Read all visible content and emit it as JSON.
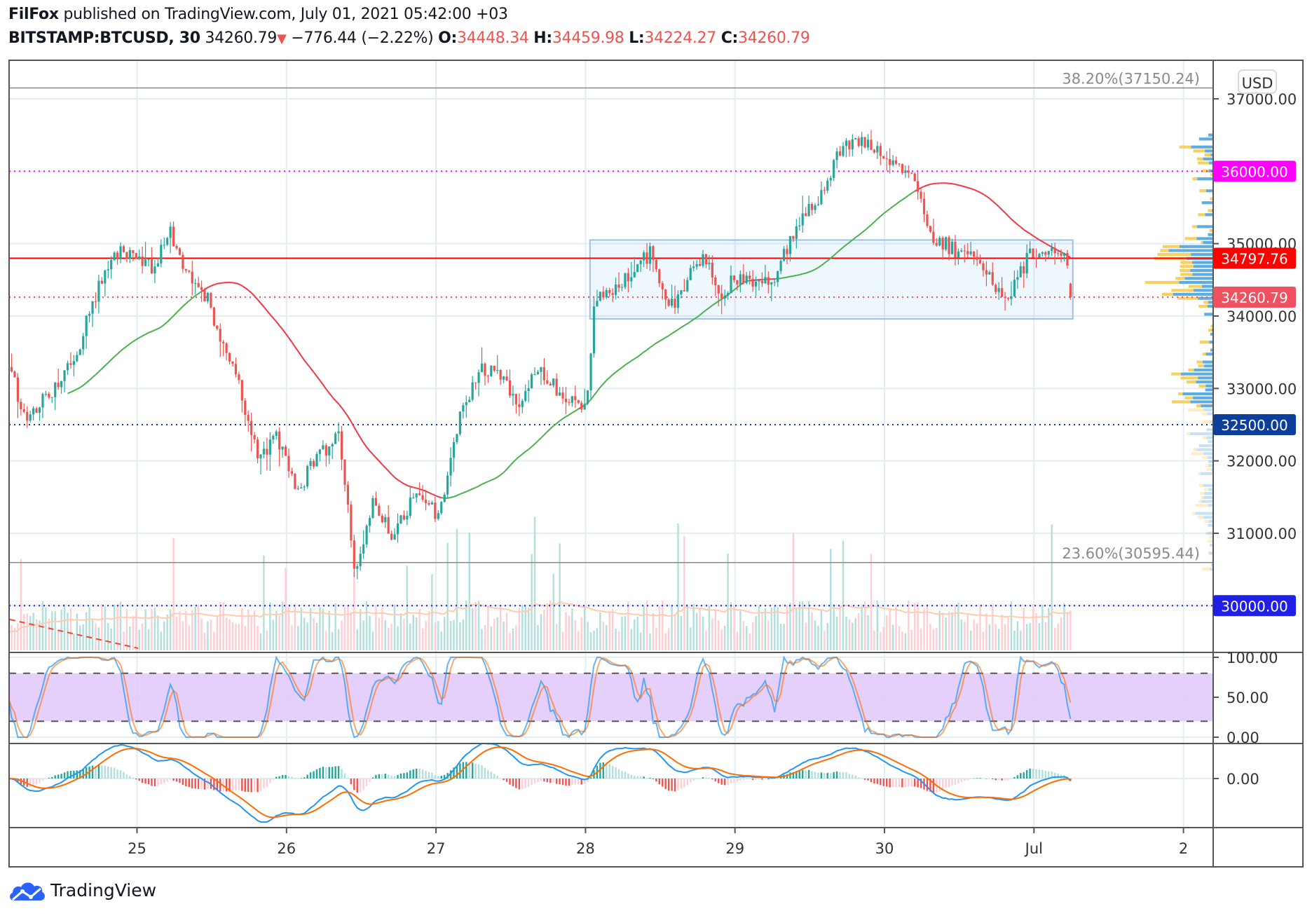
{
  "header": {
    "author": "FilFox",
    "published": "published on TradingView.com, July 01, 2021 05:42:00 +03",
    "symbol": "BITSTAMP:BTCUSD, 30",
    "last": "34260.79",
    "change": "−776.44 (−2.22%)",
    "o_label": "O:",
    "o": "34448.34",
    "h_label": "H:",
    "h": "34459.98",
    "l_label": "L:",
    "l": "34224.27",
    "c_label": "C:",
    "c": "34260.79"
  },
  "currency_badge": "USD",
  "footer": {
    "brand": "TradingView"
  },
  "chart_data": {
    "type": "candlestick",
    "title": "BITSTAMP:BTCUSD, 30",
    "interval_minutes": 30,
    "x_ticks": [
      {
        "day": 25,
        "label": "25"
      },
      {
        "day": 26,
        "label": "26"
      },
      {
        "day": 27,
        "label": "27"
      },
      {
        "day": 28,
        "label": "28"
      },
      {
        "day": 29,
        "label": "29"
      },
      {
        "day": 30,
        "label": "30"
      },
      {
        "day": 31,
        "label": "Jul"
      },
      {
        "day": 32,
        "label": "2"
      }
    ],
    "y_ticks": [
      "37000.00",
      "35000.00",
      "34000.00",
      "33000.00",
      "32000.00",
      "31000.00"
    ],
    "y_tick_values": [
      37000,
      35000,
      34000,
      33000,
      32000,
      31000
    ],
    "ylim": [
      29400,
      37350
    ],
    "price_path": [
      [
        24.14,
        33385
      ],
      [
        24.24,
        32575
      ],
      [
        24.41,
        32920
      ],
      [
        24.58,
        33385
      ],
      [
        24.69,
        34080
      ],
      [
        24.83,
        34890
      ],
      [
        24.97,
        34830
      ],
      [
        25.11,
        34660
      ],
      [
        25.22,
        35180
      ],
      [
        25.34,
        34540
      ],
      [
        25.48,
        34200
      ],
      [
        25.59,
        33500
      ],
      [
        25.7,
        32920
      ],
      [
        25.81,
        32000
      ],
      [
        25.93,
        32350
      ],
      [
        26.07,
        31530
      ],
      [
        26.18,
        32000
      ],
      [
        26.35,
        32350
      ],
      [
        26.46,
        30490
      ],
      [
        26.57,
        31420
      ],
      [
        26.71,
        30950
      ],
      [
        26.88,
        31650
      ],
      [
        27.02,
        31180
      ],
      [
        27.16,
        32570
      ],
      [
        27.3,
        33270
      ],
      [
        27.44,
        33150
      ],
      [
        27.56,
        32690
      ],
      [
        27.67,
        33270
      ],
      [
        27.84,
        32920
      ],
      [
        28.0,
        32690
      ],
      [
        28.06,
        34200
      ],
      [
        28.22,
        34430
      ],
      [
        28.44,
        34890
      ],
      [
        28.56,
        34080
      ],
      [
        28.79,
        34890
      ],
      [
        28.9,
        34310
      ],
      [
        29.02,
        34540
      ],
      [
        29.25,
        34430
      ],
      [
        29.41,
        35240
      ],
      [
        29.58,
        35700
      ],
      [
        29.69,
        36280
      ],
      [
        29.86,
        36400
      ],
      [
        30.03,
        36170
      ],
      [
        30.2,
        35820
      ],
      [
        30.31,
        35120
      ],
      [
        30.48,
        34890
      ],
      [
        30.65,
        34770
      ],
      [
        30.81,
        34200
      ],
      [
        30.98,
        34890
      ],
      [
        31.2,
        34890
      ],
      [
        31.24,
        34448
      ]
    ],
    "last_candle": {
      "open": 34448.34,
      "high": 34459.98,
      "low": 34224.27,
      "close": 34260.79
    },
    "levels": [
      {
        "price": 37150.24,
        "label": "38.20%(37150.24)",
        "style": "fib",
        "color": "#8a8a8a"
      },
      {
        "price": 30595.44,
        "label": "23.60%(30595.44)",
        "style": "fib",
        "color": "#8a8a8a"
      },
      {
        "price": 36000,
        "label": "36000.00",
        "style": "dotted",
        "color": "#ff00ff"
      },
      {
        "price": 34797.76,
        "label": "34797.76",
        "style": "solid",
        "color": "#ff0000"
      },
      {
        "price": 34260.79,
        "label": "34260.79",
        "style": "dotted",
        "color": "#ef5160"
      },
      {
        "price": 32500,
        "label": "32500.00",
        "style": "dotted",
        "color": "#0d3f9a"
      },
      {
        "price": 30000,
        "label": "30000.00",
        "style": "dotted",
        "color": "#1f1fe6"
      }
    ],
    "range_box": {
      "from_day": 28.03,
      "to_day": 31.26,
      "top": 35050,
      "bottom": 33960
    },
    "rsi_ticks": [
      "100.00",
      "50.00",
      "0.00"
    ],
    "rsi_tick_values": [
      100,
      50,
      0
    ],
    "rsi_band": [
      20,
      80
    ],
    "macd_ticks": [
      "0.00"
    ],
    "colors": {
      "up": "#26a69a",
      "down": "#ef5350",
      "ma_up": "#4caf50",
      "ma_down": "#f23645",
      "stoch_k": "#2196f3",
      "stoch_d": "#ff6d00",
      "macd": "#2196f3",
      "signal": "#ff6d00",
      "band": "#e1c8fb"
    }
  }
}
